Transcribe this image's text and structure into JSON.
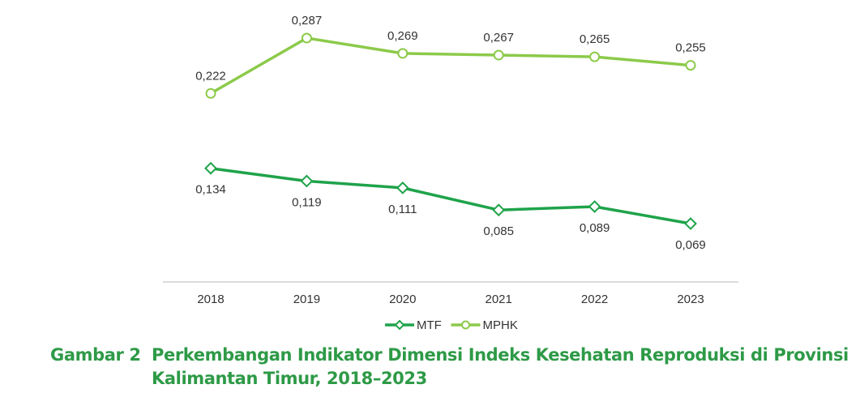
{
  "colors": {
    "mtf": "#1fa34a",
    "mphk": "#8cca4a",
    "axis": "#d0d0d0",
    "text": "#333333",
    "caption": "#2e9a47"
  },
  "chart_data": {
    "type": "line",
    "categories": [
      "2018",
      "2019",
      "2020",
      "2021",
      "2022",
      "2023"
    ],
    "series": [
      {
        "name": "MTF",
        "values": [
          0.134,
          0.119,
          0.111,
          0.085,
          0.089,
          0.069
        ],
        "labels": [
          "0,134",
          "0,119",
          "0,111",
          "0,085",
          "0,089",
          "0,069"
        ],
        "marker": "diamond",
        "color_key": "mtf"
      },
      {
        "name": "MPHK",
        "values": [
          0.222,
          0.287,
          0.269,
          0.267,
          0.265,
          0.255
        ],
        "labels": [
          "0,222",
          "0,287",
          "0,269",
          "0,267",
          "0,265",
          "0,255"
        ],
        "marker": "circle",
        "color_key": "mphk"
      }
    ],
    "title": "",
    "xlabel": "",
    "ylabel": "",
    "ylim": [
      0.04,
      0.3
    ],
    "grid": false,
    "legend": "bottom-center"
  },
  "caption": {
    "label": "Gambar 2",
    "line1": "Perkembangan Indikator Dimensi Indeks Kesehatan Reproduksi di Provinsi",
    "line2": "Kalimantan Timur, 2018–2023"
  }
}
